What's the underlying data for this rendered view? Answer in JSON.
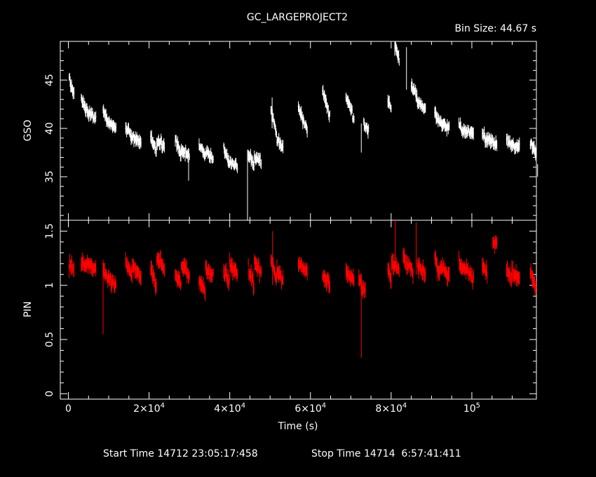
{
  "chart_data": {
    "type": "scatter",
    "title": "GC_LARGEPROJECT2",
    "bin_size": "Bin Size: 44.67 s",
    "footer": {
      "start": "Start Time 14712 23:05:17:458",
      "stop": "Stop Time 14714  6:57:41:411"
    },
    "xlabel": "Time (s)",
    "xlim": [
      -2000,
      116000
    ],
    "x_ticks": [
      {
        "value": 0,
        "label": "0"
      },
      {
        "value": 20000,
        "label": "2×10",
        "exp": "4"
      },
      {
        "value": 40000,
        "label": "4×10",
        "exp": "4"
      },
      {
        "value": 60000,
        "label": "6×10",
        "exp": "4"
      },
      {
        "value": 80000,
        "label": "8×10",
        "exp": "4"
      },
      {
        "value": 100000,
        "label": "10",
        "exp": "5"
      }
    ],
    "panels": [
      {
        "ylabel": "GSO",
        "ylim": [
          30.5,
          49
        ],
        "y_ticks": [
          35,
          40,
          45
        ],
        "color": "#ffffff",
        "segments": [
          {
            "x0": 200,
            "x1": 1400,
            "y0": 45.0,
            "y1": 43.6
          },
          {
            "x0": 3200,
            "x1": 4600,
            "y0": 43.0,
            "y1": 41.9
          },
          {
            "x0": 4700,
            "x1": 6800,
            "y0": 41.8,
            "y1": 41.0
          },
          {
            "x0": 8600,
            "x1": 9800,
            "y0": 41.9,
            "y1": 40.7
          },
          {
            "x0": 9900,
            "x1": 11800,
            "y0": 40.6,
            "y1": 40.1
          },
          {
            "x0": 14200,
            "x1": 15800,
            "y0": 40.2,
            "y1": 38.9
          },
          {
            "x0": 15900,
            "x1": 18000,
            "y0": 39.1,
            "y1": 38.6
          },
          {
            "x0": 20400,
            "x1": 21800,
            "y0": 39.2,
            "y1": 37.7
          },
          {
            "x0": 21900,
            "x1": 23800,
            "y0": 38.6,
            "y1": 38.3
          },
          {
            "x0": 26500,
            "x1": 27900,
            "y0": 38.9,
            "y1": 37.3
          },
          {
            "x0": 28000,
            "x1": 30000,
            "y0": 37.8,
            "y1": 37.2
          },
          {
            "x0": 32400,
            "x1": 33900,
            "y0": 38.4,
            "y1": 37.1
          },
          {
            "x0": 34000,
            "x1": 35900,
            "y0": 37.5,
            "y1": 36.8
          },
          {
            "x0": 38500,
            "x1": 39900,
            "y0": 38.0,
            "y1": 36.4
          },
          {
            "x0": 40000,
            "x1": 41900,
            "y0": 36.6,
            "y1": 36.2
          },
          {
            "x0": 44600,
            "x1": 46000,
            "y0": 37.4,
            "y1": 36.2
          },
          {
            "x0": 46100,
            "x1": 47800,
            "y0": 37.0,
            "y1": 36.7
          },
          {
            "x0": 50200,
            "x1": 51600,
            "y0": 42.0,
            "y1": 39.4
          },
          {
            "x0": 51700,
            "x1": 53200,
            "y0": 38.9,
            "y1": 38.0
          },
          {
            "x0": 57000,
            "x1": 59200,
            "y0": 42.3,
            "y1": 39.8
          },
          {
            "x0": 63000,
            "x1": 64800,
            "y0": 43.9,
            "y1": 41.3
          },
          {
            "x0": 68800,
            "x1": 70800,
            "y0": 43.4,
            "y1": 41.0
          },
          {
            "x0": 73200,
            "x1": 74400,
            "y0": 40.4,
            "y1": 39.9
          },
          {
            "x0": 79200,
            "x1": 80000,
            "y0": 43.0,
            "y1": 42.0
          },
          {
            "x0": 81000,
            "x1": 82000,
            "y0": 48.5,
            "y1": 47.2
          },
          {
            "x0": 85000,
            "x1": 86400,
            "y0": 44.6,
            "y1": 43.4
          },
          {
            "x0": 86500,
            "x1": 88500,
            "y0": 42.8,
            "y1": 41.9
          },
          {
            "x0": 90800,
            "x1": 92000,
            "y0": 41.6,
            "y1": 40.6
          },
          {
            "x0": 92100,
            "x1": 94400,
            "y0": 40.6,
            "y1": 40.0
          },
          {
            "x0": 96800,
            "x1": 98000,
            "y0": 40.3,
            "y1": 39.6
          },
          {
            "x0": 98100,
            "x1": 100400,
            "y0": 39.8,
            "y1": 39.4
          },
          {
            "x0": 102600,
            "x1": 103800,
            "y0": 39.5,
            "y1": 38.6
          },
          {
            "x0": 103900,
            "x1": 106200,
            "y0": 38.9,
            "y1": 38.4
          },
          {
            "x0": 108600,
            "x1": 109800,
            "y0": 38.9,
            "y1": 38.1
          },
          {
            "x0": 109900,
            "x1": 111800,
            "y0": 38.3,
            "y1": 38.0
          },
          {
            "x0": 114500,
            "x1": 115900,
            "y0": 38.6,
            "y1": 37.4
          }
        ],
        "outliers": [
          {
            "x": 44400,
            "lo": 30.5,
            "hi": 37.8
          },
          {
            "x": 29800,
            "lo": 34.6,
            "hi": 36.8
          },
          {
            "x": 116300,
            "lo": 35.0,
            "hi": 36.3
          },
          {
            "x": 80900,
            "lo": 47.5,
            "hi": 49.0
          },
          {
            "x": 83800,
            "lo": 44.0,
            "hi": 48.4
          },
          {
            "x": 50500,
            "lo": 40.0,
            "hi": 43.2
          },
          {
            "x": 72600,
            "lo": 37.5,
            "hi": 40.5
          }
        ]
      },
      {
        "ylabel": "PIN",
        "ylim": [
          -0.05,
          1.6
        ],
        "y_ticks": [
          0,
          0.5,
          1,
          1.5
        ],
        "y_tick_labels": [
          "0",
          "0.5",
          "1",
          "1.5"
        ],
        "color": "#ff0000",
        "segments": [
          {
            "x0": 200,
            "x1": 1400,
            "y0": 1.18,
            "y1": 1.15
          },
          {
            "x0": 3200,
            "x1": 4600,
            "y0": 1.22,
            "y1": 1.18
          },
          {
            "x0": 4700,
            "x1": 6800,
            "y0": 1.2,
            "y1": 1.15
          },
          {
            "x0": 8600,
            "x1": 9800,
            "y0": 1.18,
            "y1": 1.05
          },
          {
            "x0": 9900,
            "x1": 11800,
            "y0": 1.05,
            "y1": 1.0
          },
          {
            "x0": 14200,
            "x1": 15800,
            "y0": 1.22,
            "y1": 1.1
          },
          {
            "x0": 15900,
            "x1": 18000,
            "y0": 1.2,
            "y1": 1.05
          },
          {
            "x0": 20400,
            "x1": 21800,
            "y0": 1.15,
            "y1": 1.0
          },
          {
            "x0": 21900,
            "x1": 23800,
            "y0": 1.25,
            "y1": 1.15
          },
          {
            "x0": 26500,
            "x1": 27900,
            "y0": 1.1,
            "y1": 1.0
          },
          {
            "x0": 28000,
            "x1": 30000,
            "y0": 1.2,
            "y1": 1.1
          },
          {
            "x0": 32400,
            "x1": 33900,
            "y0": 1.05,
            "y1": 0.95
          },
          {
            "x0": 34000,
            "x1": 35900,
            "y0": 1.15,
            "y1": 1.1
          },
          {
            "x0": 38500,
            "x1": 39900,
            "y0": 1.15,
            "y1": 1.02
          },
          {
            "x0": 40000,
            "x1": 41900,
            "y0": 1.18,
            "y1": 1.1
          },
          {
            "x0": 44600,
            "x1": 46000,
            "y0": 1.15,
            "y1": 1.02
          },
          {
            "x0": 46100,
            "x1": 47800,
            "y0": 1.2,
            "y1": 1.12
          },
          {
            "x0": 50200,
            "x1": 51600,
            "y0": 1.25,
            "y1": 1.05
          },
          {
            "x0": 51700,
            "x1": 53200,
            "y0": 1.12,
            "y1": 1.05
          },
          {
            "x0": 57000,
            "x1": 59200,
            "y0": 1.2,
            "y1": 1.12
          },
          {
            "x0": 63000,
            "x1": 64800,
            "y0": 1.1,
            "y1": 1.02
          },
          {
            "x0": 68800,
            "x1": 70800,
            "y0": 1.12,
            "y1": 1.05
          },
          {
            "x0": 72000,
            "x1": 73600,
            "y0": 1.05,
            "y1": 0.95
          },
          {
            "x0": 79200,
            "x1": 80000,
            "y0": 1.15,
            "y1": 1.05
          },
          {
            "x0": 80100,
            "x1": 82000,
            "y0": 1.2,
            "y1": 1.15
          },
          {
            "x0": 83000,
            "x1": 85400,
            "y0": 1.25,
            "y1": 1.12
          },
          {
            "x0": 86500,
            "x1": 88500,
            "y0": 1.2,
            "y1": 1.1
          },
          {
            "x0": 90800,
            "x1": 92000,
            "y0": 1.25,
            "y1": 1.12
          },
          {
            "x0": 92100,
            "x1": 94400,
            "y0": 1.18,
            "y1": 1.1
          },
          {
            "x0": 96800,
            "x1": 98000,
            "y0": 1.22,
            "y1": 1.12
          },
          {
            "x0": 98100,
            "x1": 100400,
            "y0": 1.18,
            "y1": 1.05
          },
          {
            "x0": 102600,
            "x1": 103800,
            "y0": 1.2,
            "y1": 1.1
          },
          {
            "x0": 105200,
            "x1": 106200,
            "y0": 1.42,
            "y1": 1.38
          },
          {
            "x0": 108600,
            "x1": 109800,
            "y0": 1.15,
            "y1": 1.05
          },
          {
            "x0": 109900,
            "x1": 111800,
            "y0": 1.12,
            "y1": 1.05
          },
          {
            "x0": 114500,
            "x1": 115900,
            "y0": 1.12,
            "y1": 0.95
          }
        ],
        "outliers": [
          {
            "x": 8600,
            "lo": 0.55,
            "hi": 1.2
          },
          {
            "x": 72600,
            "lo": 0.33,
            "hi": 1.1
          },
          {
            "x": 86200,
            "lo": 1.1,
            "hi": 1.58
          },
          {
            "x": 81000,
            "lo": 1.15,
            "hi": 1.6
          },
          {
            "x": 50600,
            "lo": 1.0,
            "hi": 1.5
          }
        ]
      }
    ]
  }
}
